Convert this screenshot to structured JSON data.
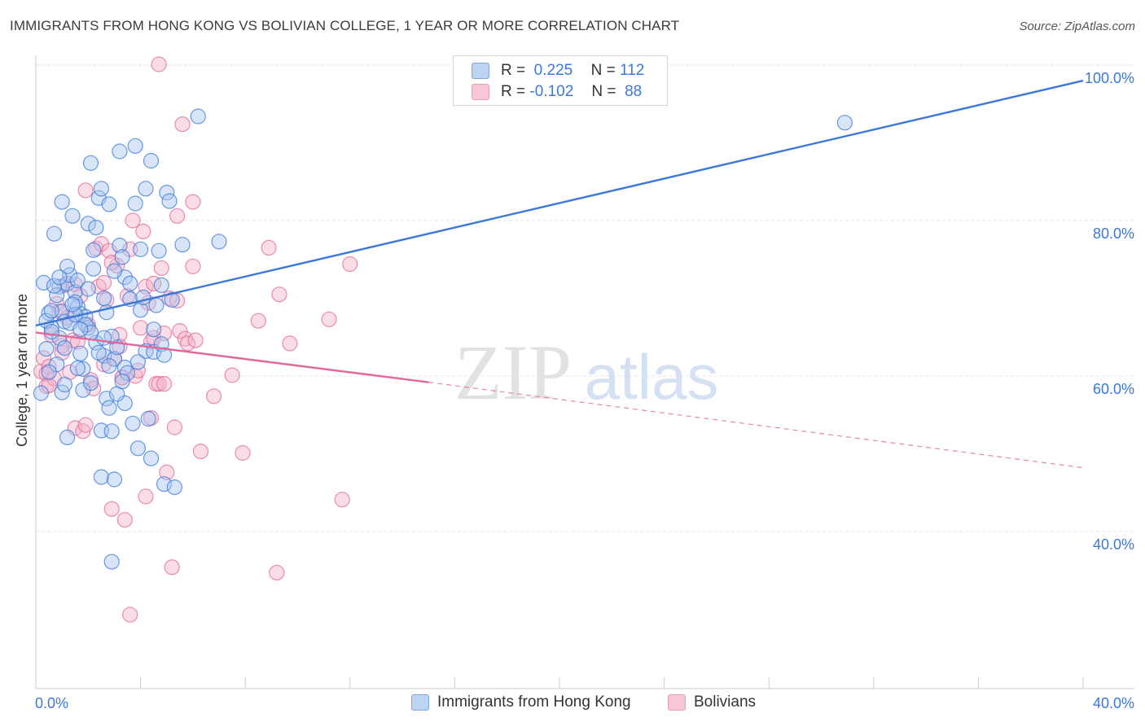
{
  "title": "IMMIGRANTS FROM HONG KONG VS BOLIVIAN COLLEGE, 1 YEAR OR MORE CORRELATION CHART",
  "source": "Source: ZipAtlas.com",
  "watermark": {
    "zip": "ZIP",
    "atlas": "atlas"
  },
  "legend": {
    "r_label": "R =",
    "n_label": "N =",
    "blue": {
      "r": "0.225",
      "n": "112"
    },
    "pink": {
      "r": "-0.102",
      "n": "88"
    }
  },
  "colors": {
    "blue": "#3b78d8",
    "blue_fill": "#a9c6ef",
    "pink": "#e0699a",
    "pink_fill": "#f4b3ca",
    "grid": "#e4e4e4",
    "tick_label": "#3b78d8"
  },
  "chart_data": {
    "type": "scatter",
    "title": "IMMIGRANTS FROM HONG KONG VS BOLIVIAN COLLEGE, 1 YEAR OR MORE CORRELATION CHART",
    "xlabel": "",
    "ylabel": "College, 1 year or more",
    "xlim": [
      0,
      40
    ],
    "ylim": [
      21,
      104
    ],
    "x_tick_labels": [
      {
        "value": 0,
        "label": "0.0%"
      },
      {
        "value": 40,
        "label": "40.0%"
      }
    ],
    "y_ticks": [
      {
        "value": 40,
        "label": "40.0%"
      },
      {
        "value": 60,
        "label": "60.0%"
      },
      {
        "value": 80,
        "label": "80.0%"
      },
      {
        "value": 100,
        "label": "100.0%"
      }
    ],
    "series": [
      {
        "name": "Immigrants from Hong Kong",
        "color": "blue",
        "r": 0.225,
        "n": 112,
        "trend": {
          "x": [
            0,
            40
          ],
          "y": [
            66.5,
            98.0
          ],
          "style": "solid"
        },
        "points": [
          [
            0.2,
            57.8
          ],
          [
            0.5,
            68.1
          ],
          [
            0.6,
            66.2
          ],
          [
            0.7,
            78.3
          ],
          [
            0.8,
            61.5
          ],
          [
            0.9,
            64.9
          ],
          [
            0.9,
            71.5
          ],
          [
            1.0,
            82.4
          ],
          [
            1.0,
            68.3
          ],
          [
            1.1,
            63.6
          ],
          [
            1.1,
            67.0
          ],
          [
            1.2,
            52.1
          ],
          [
            1.2,
            71.9
          ],
          [
            1.3,
            73.0
          ],
          [
            1.4,
            80.6
          ],
          [
            1.5,
            70.8
          ],
          [
            1.6,
            68.9
          ],
          [
            1.6,
            72.3
          ],
          [
            1.7,
            62.9
          ],
          [
            1.7,
            68.0
          ],
          [
            1.8,
            58.2
          ],
          [
            1.9,
            67.6
          ],
          [
            2.0,
            79.6
          ],
          [
            2.0,
            66.2
          ],
          [
            2.1,
            87.4
          ],
          [
            2.1,
            59.1
          ],
          [
            2.2,
            76.2
          ],
          [
            2.3,
            64.3
          ],
          [
            2.4,
            82.9
          ],
          [
            2.5,
            84.1
          ],
          [
            2.5,
            53.0
          ],
          [
            2.5,
            47.0
          ],
          [
            2.6,
            62.6
          ],
          [
            2.6,
            70.0
          ],
          [
            2.7,
            57.1
          ],
          [
            2.8,
            82.1
          ],
          [
            2.8,
            55.9
          ],
          [
            2.9,
            36.1
          ],
          [
            2.9,
            52.9
          ],
          [
            3.0,
            46.7
          ],
          [
            3.0,
            62.2
          ],
          [
            3.1,
            63.7
          ],
          [
            3.2,
            88.9
          ],
          [
            3.2,
            76.8
          ],
          [
            3.3,
            75.3
          ],
          [
            3.4,
            72.7
          ],
          [
            3.4,
            56.5
          ],
          [
            3.4,
            61.1
          ],
          [
            3.6,
            71.9
          ],
          [
            3.6,
            69.9
          ],
          [
            3.7,
            53.9
          ],
          [
            3.8,
            82.2
          ],
          [
            3.8,
            89.6
          ],
          [
            3.9,
            50.7
          ],
          [
            4.0,
            76.3
          ],
          [
            4.0,
            68.5
          ],
          [
            4.2,
            84.1
          ],
          [
            4.2,
            63.2
          ],
          [
            4.4,
            87.7
          ],
          [
            4.4,
            49.4
          ],
          [
            4.5,
            63.1
          ],
          [
            4.5,
            66.0
          ],
          [
            4.6,
            69.1
          ],
          [
            4.7,
            76.1
          ],
          [
            4.8,
            71.7
          ],
          [
            4.8,
            64.1
          ],
          [
            4.9,
            62.7
          ],
          [
            4.9,
            46.1
          ],
          [
            5.0,
            83.6
          ],
          [
            5.1,
            82.5
          ],
          [
            5.2,
            69.8
          ],
          [
            5.3,
            45.7
          ],
          [
            5.6,
            76.9
          ],
          [
            6.2,
            93.4
          ],
          [
            7.0,
            77.3
          ],
          [
            0.4,
            67.1
          ],
          [
            0.6,
            68.4
          ],
          [
            0.8,
            70.4
          ],
          [
            1.3,
            66.8
          ],
          [
            1.5,
            69.5
          ],
          [
            1.9,
            66.6
          ],
          [
            2.4,
            63.0
          ],
          [
            2.7,
            68.2
          ],
          [
            0.3,
            72.0
          ],
          [
            0.5,
            60.5
          ],
          [
            1.0,
            57.9
          ],
          [
            1.8,
            60.9
          ],
          [
            2.2,
            73.8
          ],
          [
            2.9,
            65.1
          ],
          [
            3.5,
            60.4
          ],
          [
            3.9,
            61.8
          ],
          [
            4.3,
            54.5
          ],
          [
            0.7,
            71.6
          ],
          [
            1.2,
            74.1
          ],
          [
            2.3,
            79.1
          ],
          [
            3.1,
            57.7
          ],
          [
            1.5,
            67.9
          ],
          [
            1.1,
            58.9
          ],
          [
            0.4,
            63.5
          ],
          [
            2.0,
            71.2
          ],
          [
            3.3,
            59.3
          ],
          [
            4.1,
            70.1
          ],
          [
            1.6,
            61.0
          ],
          [
            2.6,
            64.9
          ],
          [
            0.9,
            72.7
          ],
          [
            1.4,
            69.2
          ],
          [
            2.1,
            65.6
          ],
          [
            3.0,
            73.5
          ],
          [
            1.7,
            66.0
          ],
          [
            2.8,
            61.3
          ],
          [
            0.6,
            65.7
          ],
          [
            30.9,
            92.6
          ]
        ]
      },
      {
        "name": "Bolivians",
        "color": "pink",
        "r": -0.102,
        "n": 88,
        "trend": {
          "x": [
            0,
            15
          ],
          "y": [
            65.6,
            59.2
          ],
          "style": "solid",
          "extension": {
            "x": [
              15,
              40
            ],
            "y": [
              59.2,
              48.2
            ],
            "style": "dashed"
          }
        },
        "points": [
          [
            0.2,
            60.6
          ],
          [
            0.3,
            62.3
          ],
          [
            0.4,
            58.7
          ],
          [
            0.5,
            61.2
          ],
          [
            0.6,
            65.3
          ],
          [
            0.7,
            59.7
          ],
          [
            0.8,
            69.3
          ],
          [
            0.9,
            68.3
          ],
          [
            1.0,
            63.9
          ],
          [
            1.1,
            71.7
          ],
          [
            1.2,
            67.5
          ],
          [
            1.3,
            60.5
          ],
          [
            1.4,
            64.6
          ],
          [
            1.5,
            71.8
          ],
          [
            1.5,
            53.3
          ],
          [
            1.6,
            64.4
          ],
          [
            1.7,
            70.3
          ],
          [
            1.8,
            52.9
          ],
          [
            1.9,
            83.9
          ],
          [
            2.0,
            66.6
          ],
          [
            2.1,
            59.5
          ],
          [
            2.2,
            58.4
          ],
          [
            2.3,
            76.4
          ],
          [
            2.4,
            71.5
          ],
          [
            2.5,
            77.0
          ],
          [
            2.6,
            72.0
          ],
          [
            2.7,
            69.8
          ],
          [
            2.8,
            76.1
          ],
          [
            2.9,
            42.9
          ],
          [
            3.0,
            62.2
          ],
          [
            3.1,
            74.2
          ],
          [
            3.2,
            65.3
          ],
          [
            3.3,
            59.8
          ],
          [
            3.4,
            41.5
          ],
          [
            3.5,
            70.3
          ],
          [
            3.6,
            76.3
          ],
          [
            3.7,
            80.0
          ],
          [
            3.8,
            60.0
          ],
          [
            3.9,
            60.7
          ],
          [
            4.0,
            66.2
          ],
          [
            4.1,
            78.6
          ],
          [
            4.2,
            71.5
          ],
          [
            4.3,
            69.4
          ],
          [
            4.4,
            64.4
          ],
          [
            4.5,
            64.9
          ],
          [
            4.6,
            59.0
          ],
          [
            4.7,
            59.0
          ],
          [
            4.8,
            73.9
          ],
          [
            4.9,
            65.5
          ],
          [
            5.0,
            47.6
          ],
          [
            5.1,
            70.0
          ],
          [
            5.2,
            35.4
          ],
          [
            5.3,
            53.4
          ],
          [
            5.4,
            69.7
          ],
          [
            5.5,
            65.8
          ],
          [
            5.6,
            92.4
          ],
          [
            5.7,
            64.8
          ],
          [
            5.8,
            64.2
          ],
          [
            6.0,
            74.1
          ],
          [
            6.1,
            64.6
          ],
          [
            6.3,
            50.3
          ],
          [
            6.8,
            57.4
          ],
          [
            7.5,
            60.1
          ],
          [
            7.9,
            50.1
          ],
          [
            8.5,
            67.1
          ],
          [
            8.9,
            76.5
          ],
          [
            9.2,
            34.7
          ],
          [
            9.3,
            70.5
          ],
          [
            9.7,
            64.2
          ],
          [
            11.2,
            67.3
          ],
          [
            11.7,
            44.1
          ],
          [
            12.0,
            74.4
          ],
          [
            3.6,
            29.3
          ],
          [
            4.2,
            44.5
          ],
          [
            4.5,
            71.9
          ],
          [
            5.4,
            80.6
          ],
          [
            6.0,
            82.4
          ],
          [
            1.9,
            53.7
          ],
          [
            3.3,
            59.8
          ],
          [
            4.4,
            54.6
          ],
          [
            4.9,
            59.0
          ],
          [
            2.9,
            74.6
          ],
          [
            0.4,
            60.3
          ],
          [
            3.2,
            63.8
          ],
          [
            4.7,
            100.1
          ],
          [
            0.5,
            58.8
          ],
          [
            1.0,
            63.0
          ],
          [
            2.6,
            61.5
          ]
        ]
      }
    ],
    "legend_position": "top-center",
    "grid": true
  },
  "axis": {
    "ylabel": "College, 1 year or more",
    "x_left": "0.0%",
    "x_right": "40.0%"
  },
  "bottom_legend": [
    {
      "label": "Immigrants from Hong Kong"
    },
    {
      "label": "Bolivians"
    }
  ]
}
